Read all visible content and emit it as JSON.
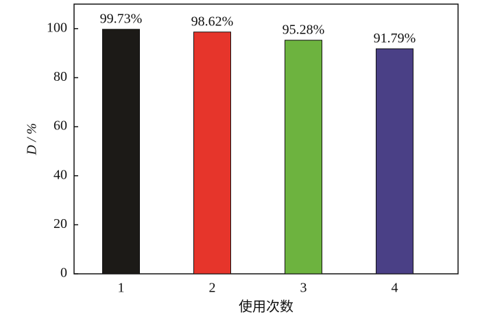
{
  "chart_data": {
    "type": "bar",
    "categories": [
      "1",
      "2",
      "3",
      "4"
    ],
    "values": [
      99.73,
      98.62,
      95.28,
      91.79
    ],
    "value_labels": [
      "99.73%",
      "98.62%",
      "95.28%",
      "91.79%"
    ],
    "colors": [
      "#1c1a17",
      "#e6352b",
      "#6db33f",
      "#4a4086"
    ],
    "ylabel": "D / %",
    "xlabel": "使用次数",
    "ylim": [
      0,
      110
    ],
    "yticks": [
      0,
      20,
      40,
      60,
      80,
      100
    ]
  }
}
